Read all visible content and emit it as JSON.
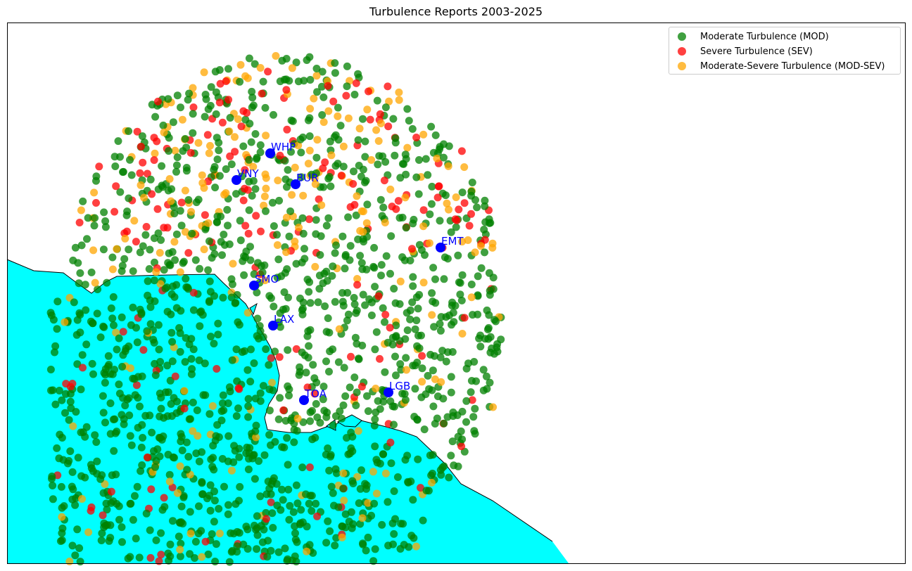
{
  "title": "Turbulence Reports 2003-2025",
  "colors": {
    "land": "#ffffff",
    "water": "#00ffff",
    "coastline": "#000000",
    "airport": "#0000ff",
    "airport_label": "#0000ff"
  },
  "legend": {
    "placement": "top-right",
    "items": [
      {
        "label": "Moderate Turbulence (MOD)",
        "color": "#008000"
      },
      {
        "label": "Severe Turbulence (SEV)",
        "color": "#ff0000"
      },
      {
        "label": "Moderate-Severe Turbulence (MOD-SEV)",
        "color": "#ffa500"
      }
    ]
  },
  "airports": [
    {
      "code": "WHP"
    },
    {
      "code": "VNY"
    },
    {
      "code": "BUR"
    },
    {
      "code": "EMT"
    },
    {
      "code": "SMO"
    },
    {
      "code": "LAX"
    },
    {
      "code": "TOA"
    },
    {
      "code": "LGB"
    }
  ],
  "chart_data": {
    "type": "scatter",
    "title": "Turbulence Reports 2003-2025",
    "xlabel": "",
    "ylabel": "",
    "grid": false,
    "legend_placement": "top-right",
    "series": [
      {
        "name": "Moderate Turbulence (MOD)",
        "color": "#008000"
      },
      {
        "name": "Severe Turbulence (SEV)",
        "color": "#ff0000"
      },
      {
        "name": "Moderate-Severe Turbulence (MOD-SEV)",
        "color": "#ffa500"
      }
    ]
  }
}
